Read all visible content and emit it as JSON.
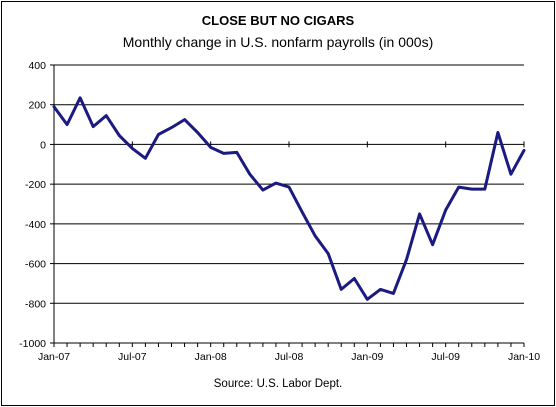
{
  "chart_data": {
    "type": "line",
    "title": "CLOSE BUT NO CIGARS",
    "subtitle": "Monthly change in U.S. nonfarm payrolls (in 000s)",
    "source": "Source: U.S. Labor Dept.",
    "xlabel": "",
    "ylabel": "",
    "ylim": [
      -1000,
      400
    ],
    "yticks": [
      400,
      200,
      0,
      -200,
      -400,
      -600,
      -800,
      -1000
    ],
    "grid": true,
    "x_tick_labels": [
      "Jan-07",
      "Jul-07",
      "Jan-08",
      "Jul-08",
      "Jan-09",
      "Jul-09",
      "Jan-10"
    ],
    "x": [
      "Jan-07",
      "Feb-07",
      "Mar-07",
      "Apr-07",
      "May-07",
      "Jun-07",
      "Jul-07",
      "Aug-07",
      "Sep-07",
      "Oct-07",
      "Nov-07",
      "Dec-07",
      "Jan-08",
      "Feb-08",
      "Mar-08",
      "Apr-08",
      "May-08",
      "Jun-08",
      "Jul-08",
      "Aug-08",
      "Sep-08",
      "Oct-08",
      "Nov-08",
      "Dec-08",
      "Jan-09",
      "Feb-09",
      "Mar-09",
      "Apr-09",
      "May-09",
      "Jun-09",
      "Jul-09",
      "Aug-09",
      "Sep-09",
      "Oct-09",
      "Nov-09",
      "Dec-09",
      "Jan-10"
    ],
    "series": [
      {
        "color": "#1a1a80",
        "values": [
          190,
          100,
          235,
          90,
          145,
          45,
          -20,
          -70,
          50,
          85,
          125,
          60,
          -15,
          -45,
          -40,
          -150,
          -230,
          -195,
          -215,
          -340,
          -460,
          -550,
          -730,
          -675,
          -780,
          -730,
          -750,
          -580,
          -350,
          -505,
          -330,
          -215,
          -225,
          -225,
          60,
          -150,
          -30
        ]
      }
    ]
  }
}
